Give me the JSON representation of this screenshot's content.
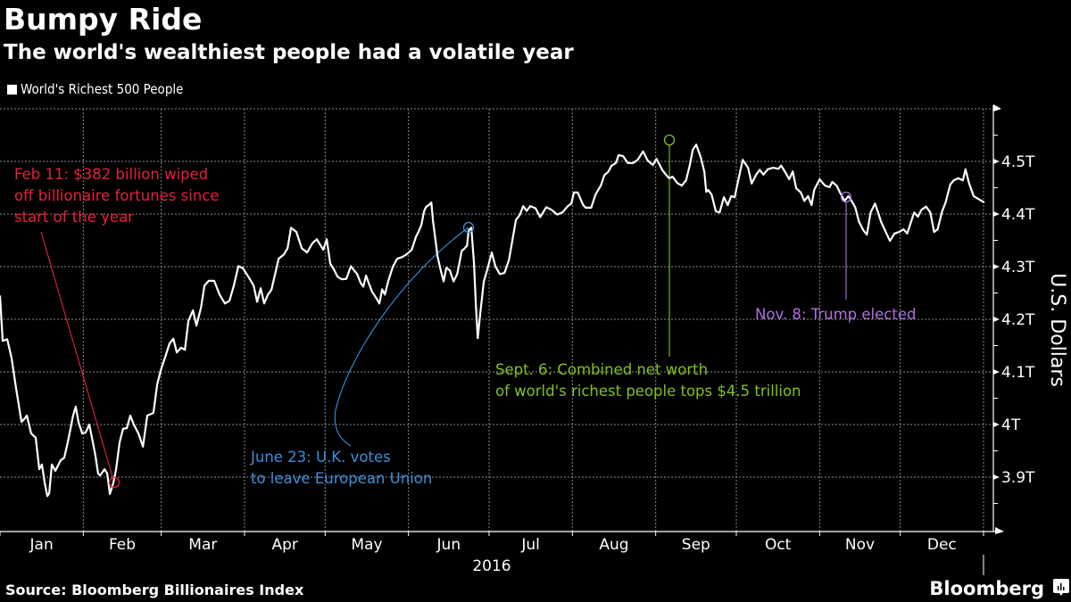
{
  "header": {
    "title": "Bumpy Ride",
    "subtitle": "The world's wealthiest people had a volatile year"
  },
  "legend": {
    "label": "World's Richest 500 People",
    "color": "#ffffff"
  },
  "footer": {
    "source": "Source: Bloomberg Billionaires Index",
    "brand": "Bloomberg",
    "brand_icon": "bloomberg-terminal-icon"
  },
  "colors": {
    "background": "#000000",
    "line": "#ffffff",
    "grid": "#8a8a8a",
    "feb_annotation": "#e8203c",
    "june_annotation": "#3a8fd8",
    "sept_annotation": "#7fc31c",
    "nov_annotation": "#b071e0"
  },
  "chart_data": {
    "type": "line",
    "title": "Bumpy Ride",
    "subtitle": "The world's wealthiest people had a volatile year",
    "xlabel": "2016",
    "ylabel": "U.S. Dollars",
    "ylim": [
      3.8,
      4.6
    ],
    "y_ticks": [
      3.9,
      4.0,
      4.1,
      4.2,
      4.3,
      4.4,
      4.5
    ],
    "y_tick_labels": [
      "3.9T",
      "4T",
      "4.1T",
      "4.2T",
      "4.3T",
      "4.4T",
      "4.5T"
    ],
    "x_tick_labels": [
      "Jan",
      "Feb",
      "Mar",
      "Apr",
      "May",
      "Jun",
      "Jul",
      "Aug",
      "Sep",
      "Oct",
      "Nov",
      "Dec"
    ],
    "x_range_days": [
      0,
      366
    ],
    "grid": true,
    "legend_position": "top-left",
    "series": [
      {
        "name": "World's Richest 500 People",
        "unit": "trillion USD",
        "points": [
          [
            0,
            4.245
          ],
          [
            1,
            4.159
          ],
          [
            2.7,
            4.162
          ],
          [
            4.3,
            4.127
          ],
          [
            6,
            4.068
          ],
          [
            8,
            4.005
          ],
          [
            9.3,
            4.012
          ],
          [
            10,
            4.017
          ],
          [
            11.6,
            3.983
          ],
          [
            13.3,
            3.975
          ],
          [
            14.6,
            3.915
          ],
          [
            15.6,
            3.924
          ],
          [
            16.6,
            3.89
          ],
          [
            17.6,
            3.864
          ],
          [
            18.3,
            3.869
          ],
          [
            19.3,
            3.924
          ],
          [
            20.6,
            3.912
          ],
          [
            22.6,
            3.932
          ],
          [
            23.9,
            3.937
          ],
          [
            25.2,
            3.966
          ],
          [
            27.2,
            4.017
          ],
          [
            28.2,
            4.034
          ],
          [
            29.2,
            4.005
          ],
          [
            30.6,
            3.983
          ],
          [
            31.9,
            3.985
          ],
          [
            33.2,
            4.0
          ],
          [
            34.2,
            3.975
          ],
          [
            35.5,
            3.941
          ],
          [
            36.5,
            3.907
          ],
          [
            37.2,
            3.903
          ],
          [
            38.2,
            3.91
          ],
          [
            38.9,
            3.915
          ],
          [
            39.9,
            3.907
          ],
          [
            40.9,
            3.868
          ],
          [
            42.2,
            3.89
          ],
          [
            43.2,
            3.915
          ],
          [
            44.5,
            3.966
          ],
          [
            45.8,
            3.992
          ],
          [
            47.2,
            3.993
          ],
          [
            48.5,
            4.017
          ],
          [
            49.8,
            4.0
          ],
          [
            51.5,
            3.983
          ],
          [
            53.2,
            3.958
          ],
          [
            54.8,
            4.017
          ],
          [
            57.1,
            4.022
          ],
          [
            58.5,
            4.076
          ],
          [
            59.8,
            4.103
          ],
          [
            61.5,
            4.129
          ],
          [
            63.1,
            4.154
          ],
          [
            64.5,
            4.163
          ],
          [
            65.8,
            4.137
          ],
          [
            67.4,
            4.146
          ],
          [
            68.8,
            4.142
          ],
          [
            70.1,
            4.197
          ],
          [
            71.8,
            4.217
          ],
          [
            73.1,
            4.188
          ],
          [
            74.8,
            4.222
          ],
          [
            76.1,
            4.264
          ],
          [
            77.7,
            4.273
          ],
          [
            79.7,
            4.273
          ],
          [
            81.7,
            4.247
          ],
          [
            83.7,
            4.23
          ],
          [
            85.4,
            4.235
          ],
          [
            87,
            4.264
          ],
          [
            88.7,
            4.301
          ],
          [
            90.4,
            4.297
          ],
          [
            92.4,
            4.281
          ],
          [
            94.4,
            4.264
          ],
          [
            95.7,
            4.233
          ],
          [
            97,
            4.259
          ],
          [
            98.3,
            4.23
          ],
          [
            99.7,
            4.247
          ],
          [
            101,
            4.256
          ],
          [
            102.3,
            4.284
          ],
          [
            103.7,
            4.315
          ],
          [
            105.6,
            4.323
          ],
          [
            107,
            4.335
          ],
          [
            108.3,
            4.374
          ],
          [
            110.3,
            4.366
          ],
          [
            112.3,
            4.335
          ],
          [
            114.3,
            4.327
          ],
          [
            116.3,
            4.345
          ],
          [
            117.9,
            4.352
          ],
          [
            120.3,
            4.332
          ],
          [
            121.6,
            4.352
          ],
          [
            122.9,
            4.306
          ],
          [
            124.3,
            4.294
          ],
          [
            125.6,
            4.281
          ],
          [
            127.2,
            4.276
          ],
          [
            128.9,
            4.277
          ],
          [
            130.6,
            4.301
          ],
          [
            131.6,
            4.294
          ],
          [
            132.9,
            4.286
          ],
          [
            134.2,
            4.269
          ],
          [
            135.2,
            4.262
          ],
          [
            136.2,
            4.283
          ],
          [
            137.2,
            4.269
          ],
          [
            138.5,
            4.252
          ],
          [
            140.2,
            4.239
          ],
          [
            141.2,
            4.23
          ],
          [
            142.2,
            4.257
          ],
          [
            143.2,
            4.247
          ],
          [
            144.5,
            4.273
          ],
          [
            146.2,
            4.3
          ],
          [
            147.8,
            4.315
          ],
          [
            149.5,
            4.318
          ],
          [
            151.2,
            4.323
          ],
          [
            153.2,
            4.332
          ],
          [
            154.8,
            4.357
          ],
          [
            155.8,
            4.367
          ],
          [
            156.8,
            4.379
          ],
          [
            157.8,
            4.405
          ],
          [
            158.5,
            4.413
          ],
          [
            159.8,
            4.418
          ],
          [
            160.5,
            4.422
          ],
          [
            161.1,
            4.388
          ],
          [
            162.8,
            4.32
          ],
          [
            164.1,
            4.291
          ],
          [
            165.1,
            4.272
          ],
          [
            166.1,
            4.298
          ],
          [
            167.4,
            4.293
          ],
          [
            168.8,
            4.272
          ],
          [
            170.1,
            4.286
          ],
          [
            170.8,
            4.303
          ],
          [
            171.8,
            4.33
          ],
          [
            172.8,
            4.334
          ],
          [
            173.8,
            4.34
          ],
          [
            174.4,
            4.369
          ],
          [
            175.4,
            4.374
          ],
          [
            176.4,
            4.306
          ],
          [
            177.1,
            4.227
          ],
          [
            177.8,
            4.164
          ],
          [
            178.7,
            4.211
          ],
          [
            180,
            4.271
          ],
          [
            181.4,
            4.296
          ],
          [
            183,
            4.327
          ],
          [
            184.4,
            4.3
          ],
          [
            186,
            4.286
          ],
          [
            187.7,
            4.288
          ],
          [
            189.4,
            4.313
          ],
          [
            192,
            4.389
          ],
          [
            193.4,
            4.398
          ],
          [
            194.7,
            4.415
          ],
          [
            196,
            4.406
          ],
          [
            197.3,
            4.415
          ],
          [
            199.3,
            4.411
          ],
          [
            201,
            4.394
          ],
          [
            203.3,
            4.413
          ],
          [
            205.3,
            4.408
          ],
          [
            207.3,
            4.399
          ],
          [
            209.3,
            4.403
          ],
          [
            211.3,
            4.415
          ],
          [
            212.6,
            4.42
          ],
          [
            213.6,
            4.441
          ],
          [
            215,
            4.441
          ],
          [
            217,
            4.417
          ],
          [
            218,
            4.412
          ],
          [
            220,
            4.412
          ],
          [
            221.6,
            4.437
          ],
          [
            223.6,
            4.454
          ],
          [
            224.9,
            4.474
          ],
          [
            226.3,
            4.48
          ],
          [
            227.6,
            4.492
          ],
          [
            229.2,
            4.497
          ],
          [
            230.2,
            4.512
          ],
          [
            231.9,
            4.51
          ],
          [
            233.6,
            4.497
          ],
          [
            235.6,
            4.497
          ],
          [
            237.3,
            4.503
          ],
          [
            239.3,
            4.519
          ],
          [
            241,
            4.502
          ],
          [
            242.9,
            4.493
          ],
          [
            244.3,
            4.505
          ],
          [
            246.3,
            4.485
          ],
          [
            247.6,
            4.476
          ],
          [
            249,
            4.468
          ],
          [
            250.3,
            4.471
          ],
          [
            252,
            4.459
          ],
          [
            253.7,
            4.454
          ],
          [
            255.3,
            4.464
          ],
          [
            256.7,
            4.493
          ],
          [
            257.8,
            4.522
          ],
          [
            259.1,
            4.532
          ],
          [
            260.8,
            4.507
          ],
          [
            262.1,
            4.48
          ],
          [
            262.8,
            4.442
          ],
          [
            263.5,
            4.446
          ],
          [
            264.8,
            4.437
          ],
          [
            266.4,
            4.405
          ],
          [
            267.8,
            4.403
          ],
          [
            269.4,
            4.432
          ],
          [
            270.8,
            4.417
          ],
          [
            272.1,
            4.434
          ],
          [
            273.4,
            4.432
          ],
          [
            274.8,
            4.466
          ],
          [
            276.4,
            4.503
          ],
          [
            278.4,
            4.488
          ],
          [
            279.7,
            4.458
          ],
          [
            281.4,
            4.475
          ],
          [
            282.7,
            4.484
          ],
          [
            284.1,
            4.475
          ],
          [
            285.7,
            4.485
          ],
          [
            287.7,
            4.488
          ],
          [
            289.7,
            4.486
          ],
          [
            290.7,
            4.492
          ],
          [
            292.4,
            4.478
          ],
          [
            293.7,
            4.466
          ],
          [
            295,
            4.481
          ],
          [
            296.3,
            4.449
          ],
          [
            298,
            4.441
          ],
          [
            299.3,
            4.425
          ],
          [
            300.7,
            4.434
          ],
          [
            302,
            4.417
          ],
          [
            303,
            4.446
          ],
          [
            305,
            4.466
          ],
          [
            307,
            4.454
          ],
          [
            308.7,
            4.451
          ],
          [
            309.7,
            4.461
          ],
          [
            311.3,
            4.454
          ],
          [
            313,
            4.437
          ],
          [
            314.3,
            4.425
          ],
          [
            315.7,
            4.434
          ],
          [
            317,
            4.424
          ],
          [
            318.3,
            4.412
          ],
          [
            319.6,
            4.386
          ],
          [
            321.3,
            4.369
          ],
          [
            322.6,
            4.361
          ],
          [
            324,
            4.403
          ],
          [
            325.6,
            4.42
          ],
          [
            326.6,
            4.405
          ],
          [
            327.9,
            4.385
          ],
          [
            329.6,
            4.366
          ],
          [
            331.2,
            4.349
          ],
          [
            332.9,
            4.363
          ],
          [
            334.6,
            4.366
          ],
          [
            336.2,
            4.371
          ],
          [
            337.6,
            4.363
          ],
          [
            339.2,
            4.388
          ],
          [
            340.2,
            4.403
          ],
          [
            341.6,
            4.395
          ],
          [
            342.9,
            4.408
          ],
          [
            344.6,
            4.414
          ],
          [
            346.2,
            4.403
          ],
          [
            347.6,
            4.366
          ],
          [
            348.9,
            4.371
          ],
          [
            350.6,
            4.405
          ],
          [
            351.9,
            4.422
          ],
          [
            353.6,
            4.456
          ],
          [
            354.9,
            4.464
          ],
          [
            356.6,
            4.468
          ],
          [
            358.3,
            4.464
          ],
          [
            359.3,
            4.485
          ],
          [
            360.6,
            4.459
          ],
          [
            362.3,
            4.434
          ],
          [
            364,
            4.429
          ],
          [
            365.3,
            4.425
          ],
          [
            366.3,
            4.422
          ]
        ]
      }
    ],
    "annotations": [
      {
        "id": "feb",
        "text_lines": [
          "Feb 11: $382 billion wiped",
          "off billionaire fortunes since",
          "start of the year"
        ],
        "date": "Feb 11",
        "value": 3.885,
        "color_key": "feb_annotation"
      },
      {
        "id": "june",
        "text_lines": [
          "June 23: U.K. votes",
          "to leave European Union"
        ],
        "date": "June 23",
        "value": 4.374,
        "color_key": "june_annotation"
      },
      {
        "id": "sept",
        "text_lines": [
          "Sept. 6: Combined net worth",
          "of world's richest people tops $4.5 trillion"
        ],
        "date": "Sept. 6",
        "value": 4.54,
        "color_key": "sept_annotation"
      },
      {
        "id": "nov",
        "text_lines": [
          "Nov. 8: Trump elected"
        ],
        "date": "Nov. 8",
        "value": 4.43,
        "color_key": "nov_annotation"
      }
    ]
  }
}
